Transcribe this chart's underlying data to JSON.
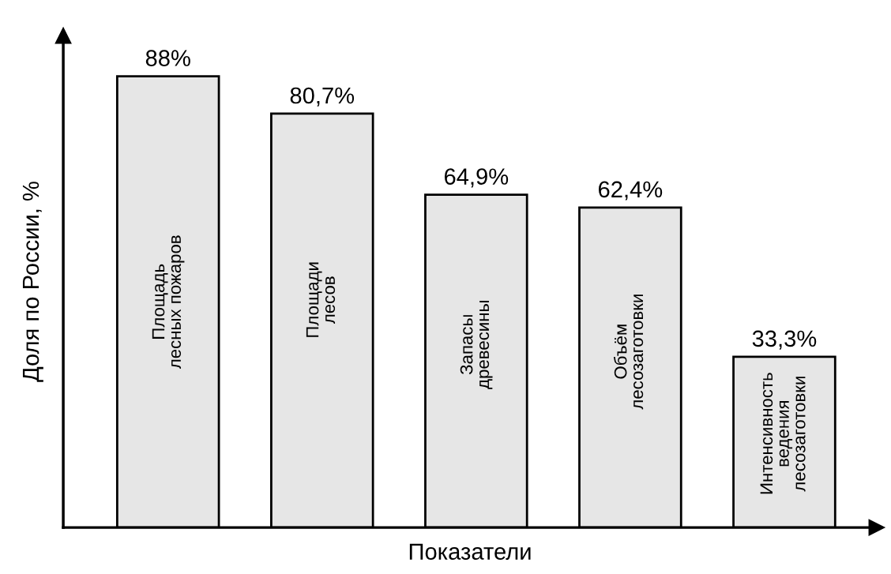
{
  "chart_data": {
    "type": "bar",
    "xlabel": "Показатели",
    "ylabel": "Доля по России, %",
    "categories": [
      "Площадь\nлесных пожаров",
      "Площади\nлесов",
      "Запасы\nдревесины",
      "Объём\nлесозаготовки",
      "Интенсивность\nведения\nлесозаготовки"
    ],
    "values": [
      88,
      80.7,
      64.9,
      62.4,
      33.3
    ],
    "value_labels": [
      "88%",
      "80,7%",
      "64,9%",
      "62,4%",
      "33,3%"
    ],
    "color": "#e6e6e6",
    "tick_labels": false
  }
}
